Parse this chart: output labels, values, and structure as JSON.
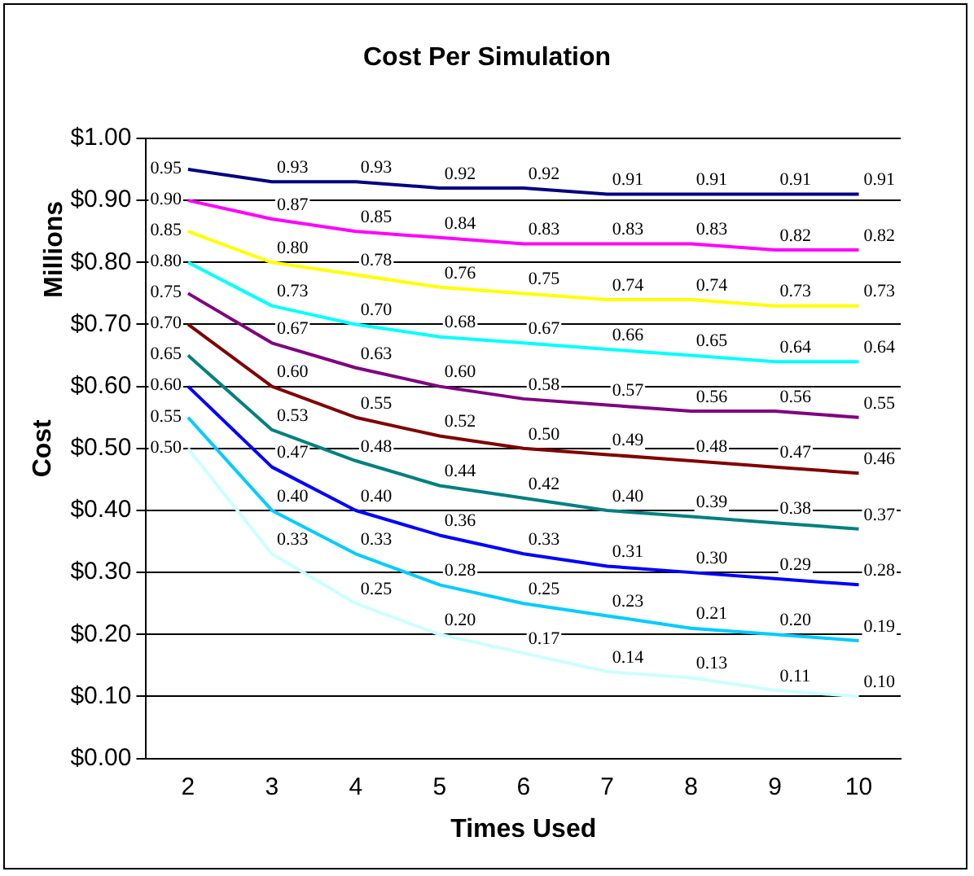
{
  "chart_data": {
    "type": "line",
    "title": "Cost Per Simulation",
    "xlabel": "Times Used",
    "ylabel": "Cost",
    "annotations": [
      "Millions"
    ],
    "categories": [
      "2",
      "3",
      "4",
      "5",
      "6",
      "7",
      "8",
      "9",
      "10"
    ],
    "series": [
      {
        "color": "#000080",
        "values": [
          0.95,
          0.93,
          0.93,
          0.92,
          0.92,
          0.91,
          0.91,
          0.91,
          0.91
        ],
        "value_labels": [
          "0.95",
          "0.93",
          "0.93",
          "0.92",
          "0.92",
          "0.91",
          "0.91",
          "0.91",
          "0.91"
        ]
      },
      {
        "color": "#ff00ff",
        "values": [
          0.9,
          0.87,
          0.85,
          0.84,
          0.83,
          0.83,
          0.83,
          0.82,
          0.82
        ],
        "value_labels": [
          "0.90",
          "0.87",
          "0.85",
          "0.84",
          "0.83",
          "0.83",
          "0.83",
          "0.82",
          "0.82"
        ]
      },
      {
        "color": "#ffff00",
        "values": [
          0.85,
          0.8,
          0.78,
          0.76,
          0.75,
          0.74,
          0.74,
          0.73,
          0.73
        ],
        "value_labels": [
          "0.85",
          "0.80",
          "0.78",
          "0.76",
          "0.75",
          "0.74",
          "0.74",
          "0.73",
          "0.73"
        ]
      },
      {
        "color": "#00ffff",
        "values": [
          0.8,
          0.73,
          0.7,
          0.68,
          0.67,
          0.66,
          0.65,
          0.64,
          0.64
        ],
        "value_labels": [
          "0.80",
          "0.73",
          "0.70",
          "0.68",
          "0.67",
          "0.66",
          "0.65",
          "0.64",
          "0.64"
        ]
      },
      {
        "color": "#800080",
        "values": [
          0.75,
          0.67,
          0.63,
          0.6,
          0.58,
          0.57,
          0.56,
          0.56,
          0.55
        ],
        "value_labels": [
          "0.75",
          "0.67",
          "0.63",
          "0.60",
          "0.58",
          "0.57",
          "0.56",
          "0.56",
          "0.55"
        ]
      },
      {
        "color": "#800000",
        "values": [
          0.7,
          0.6,
          0.55,
          0.52,
          0.5,
          0.49,
          0.48,
          0.47,
          0.46
        ],
        "value_labels": [
          "0.70",
          "0.60",
          "0.55",
          "0.52",
          "0.50",
          "0.49",
          "0.48",
          "0.47",
          "0.46"
        ]
      },
      {
        "color": "#008080",
        "values": [
          0.65,
          0.53,
          0.48,
          0.44,
          0.42,
          0.4,
          0.39,
          0.38,
          0.37
        ],
        "value_labels": [
          "0.65",
          "0.53",
          "0.48",
          "0.44",
          "0.42",
          "0.40",
          "0.39",
          "0.38",
          "0.37"
        ]
      },
      {
        "color": "#0000ff",
        "values": [
          0.6,
          0.47,
          0.4,
          0.36,
          0.33,
          0.31,
          0.3,
          0.29,
          0.28
        ],
        "value_labels": [
          "0.60",
          "0.47",
          "0.40",
          "0.36",
          "0.33",
          "0.31",
          "0.30",
          "0.29",
          "0.28"
        ]
      },
      {
        "color": "#00ccff",
        "values": [
          0.55,
          0.4,
          0.33,
          0.28,
          0.25,
          0.23,
          0.21,
          0.2,
          0.19
        ],
        "value_labels": [
          "0.55",
          "0.40",
          "0.33",
          "0.28",
          "0.25",
          "0.23",
          "0.21",
          "0.20",
          "0.19"
        ]
      },
      {
        "color": "#ccffff",
        "values": [
          0.5,
          0.33,
          0.25,
          0.2,
          0.17,
          0.14,
          0.13,
          0.11,
          0.1
        ],
        "value_labels": [
          "0.50",
          "0.33",
          "0.25",
          "0.20",
          "0.17",
          "0.14",
          "0.13",
          "0.11",
          "0.10"
        ]
      }
    ],
    "ylim": [
      0,
      1
    ],
    "yticks": [
      {
        "value": 0,
        "label": "$0.00"
      },
      {
        "value": 0.1,
        "label": "$0.10"
      },
      {
        "value": 0.2,
        "label": "$0.20"
      },
      {
        "value": 0.3,
        "label": "$0.30"
      },
      {
        "value": 0.4,
        "label": "$0.40"
      },
      {
        "value": 0.5,
        "label": "$0.50"
      },
      {
        "value": 0.6,
        "label": "$0.60"
      },
      {
        "value": 0.7,
        "label": "$0.70"
      },
      {
        "value": 0.8,
        "label": "$0.80"
      },
      {
        "value": 0.9,
        "label": "$0.90"
      },
      {
        "value": 1,
        "label": "$1.00"
      }
    ],
    "grid": "y",
    "legend": false,
    "marker": "none",
    "line_style": "solid"
  }
}
